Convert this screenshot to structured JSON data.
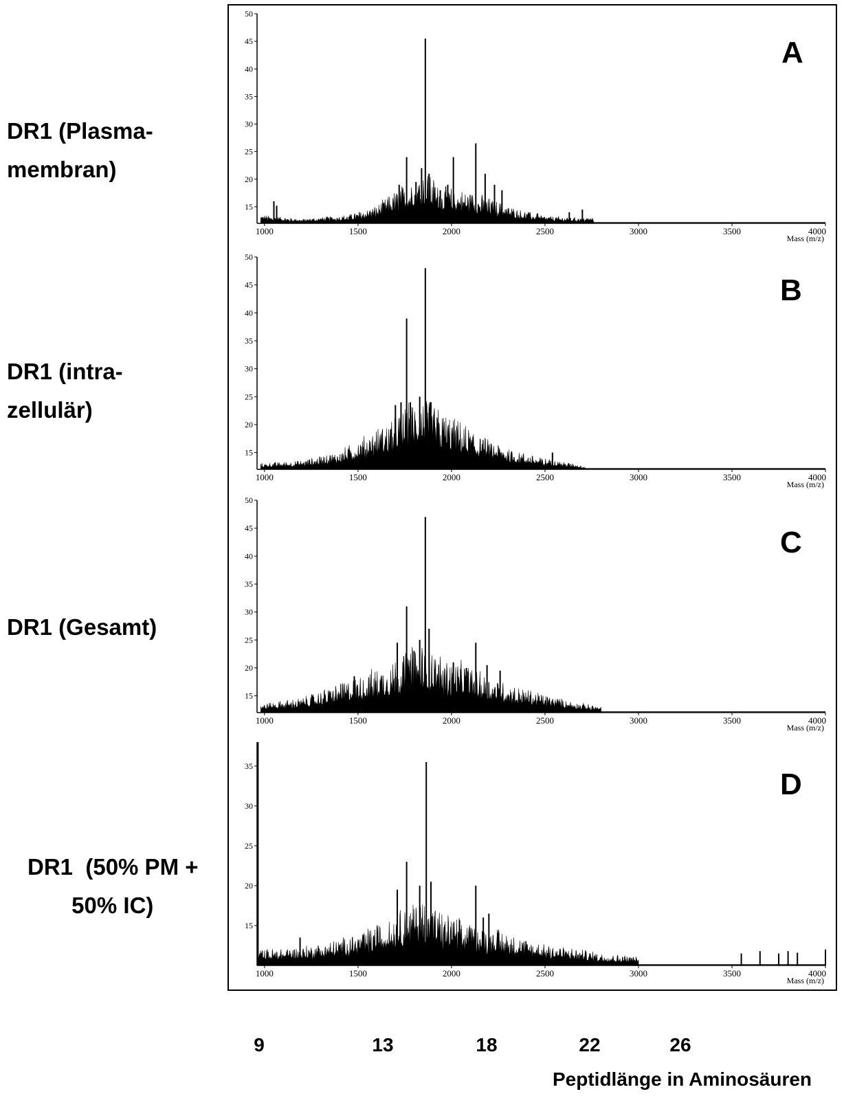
{
  "figure": {
    "rows": [
      {
        "letter": "A",
        "label_lines": [
          "DR1 (Plasma-",
          "membran)"
        ]
      },
      {
        "letter": "B",
        "label_lines": [
          "DR1 (intra-",
          "zellulär)"
        ]
      },
      {
        "letter": "C",
        "label_lines": [
          "DR1 (Gesamt)"
        ]
      },
      {
        "letter": "D",
        "label_lines": [
          "DR1  (50% PM +",
          "       50% IC)"
        ]
      }
    ],
    "peptide_axis": {
      "ticks": [
        "9",
        "13",
        "18",
        "22",
        "26"
      ],
      "label": "Peptidlänge in Aminosäuren"
    }
  },
  "chart_data": [
    {
      "type": "bar",
      "panel": "A",
      "title": "",
      "xlabel": "Mass (m/z)",
      "ylabel": "",
      "xlim": [
        960,
        4000
      ],
      "ylim": [
        12,
        50
      ],
      "xticks": [
        1000,
        1500,
        2000,
        2500,
        3000,
        3500,
        4000
      ],
      "yticks": [
        15,
        20,
        25,
        30,
        35,
        40,
        45,
        50
      ],
      "baseline": 12,
      "background": {
        "range": [
          980,
          2760
        ],
        "envelope": [
          [
            980,
            13.2
          ],
          [
            1200,
            12.6
          ],
          [
            1450,
            13.2
          ],
          [
            1600,
            14.5
          ],
          [
            1700,
            16.5
          ],
          [
            1800,
            18.5
          ],
          [
            1860,
            19.5
          ],
          [
            1950,
            17.0
          ],
          [
            2100,
            16.5
          ],
          [
            2200,
            15.5
          ],
          [
            2350,
            14.0
          ],
          [
            2500,
            13.0
          ],
          [
            2650,
            12.8
          ],
          [
            2750,
            12.8
          ]
        ]
      },
      "peaks": [
        {
          "mass": 1050,
          "intensity": 16.0
        },
        {
          "mass": 1065,
          "intensity": 15.2
        },
        {
          "mass": 1720,
          "intensity": 19.0
        },
        {
          "mass": 1760,
          "intensity": 24.0
        },
        {
          "mass": 1810,
          "intensity": 19.5
        },
        {
          "mass": 1840,
          "intensity": 22.0
        },
        {
          "mass": 1860,
          "intensity": 45.5
        },
        {
          "mass": 1880,
          "intensity": 21.0
        },
        {
          "mass": 1940,
          "intensity": 18.0
        },
        {
          "mass": 1980,
          "intensity": 19.0
        },
        {
          "mass": 2010,
          "intensity": 24.0
        },
        {
          "mass": 2130,
          "intensity": 26.5
        },
        {
          "mass": 2180,
          "intensity": 21.0
        },
        {
          "mass": 2230,
          "intensity": 19.0
        },
        {
          "mass": 2270,
          "intensity": 18.0
        },
        {
          "mass": 2460,
          "intensity": 13.8
        },
        {
          "mass": 2630,
          "intensity": 14.0
        },
        {
          "mass": 2700,
          "intensity": 14.5
        }
      ]
    },
    {
      "type": "bar",
      "panel": "B",
      "title": "",
      "xlabel": "Mass (m/z)",
      "ylabel": "",
      "xlim": [
        960,
        4000
      ],
      "ylim": [
        12,
        50
      ],
      "xticks": [
        1000,
        1500,
        2000,
        2500,
        3000,
        3500,
        4000
      ],
      "yticks": [
        15,
        20,
        25,
        30,
        35,
        40,
        45,
        50
      ],
      "baseline": 12,
      "background": {
        "range": [
          980,
          2720
        ],
        "envelope": [
          [
            980,
            12.8
          ],
          [
            1200,
            13.2
          ],
          [
            1400,
            14.5
          ],
          [
            1500,
            16.0
          ],
          [
            1600,
            17.5
          ],
          [
            1700,
            19.5
          ],
          [
            1800,
            21.5
          ],
          [
            1850,
            22.0
          ],
          [
            1950,
            20.0
          ],
          [
            2100,
            17.5
          ],
          [
            2200,
            16.0
          ],
          [
            2350,
            14.5
          ],
          [
            2500,
            13.5
          ],
          [
            2650,
            12.8
          ],
          [
            2720,
            12.4
          ]
        ]
      },
      "peaks": [
        {
          "mass": 1700,
          "intensity": 23.5
        },
        {
          "mass": 1730,
          "intensity": 24.0
        },
        {
          "mass": 1760,
          "intensity": 39.0
        },
        {
          "mass": 1780,
          "intensity": 24.0
        },
        {
          "mass": 1830,
          "intensity": 25.0
        },
        {
          "mass": 1860,
          "intensity": 48.0
        },
        {
          "mass": 1890,
          "intensity": 24.0
        },
        {
          "mass": 2540,
          "intensity": 15.0
        }
      ]
    },
    {
      "type": "bar",
      "panel": "C",
      "title": "",
      "xlabel": "Mass (m/z)",
      "ylabel": "",
      "xlim": [
        960,
        4000
      ],
      "ylim": [
        12,
        50
      ],
      "xticks": [
        1000,
        1500,
        2000,
        2500,
        3000,
        3500,
        4000
      ],
      "yticks": [
        15,
        20,
        25,
        30,
        35,
        40,
        45,
        50
      ],
      "baseline": 12,
      "background": {
        "range": [
          980,
          2800
        ],
        "envelope": [
          [
            980,
            13.2
          ],
          [
            1200,
            14.0
          ],
          [
            1400,
            16.0
          ],
          [
            1550,
            17.5
          ],
          [
            1700,
            19.5
          ],
          [
            1800,
            21.0
          ],
          [
            1850,
            21.5
          ],
          [
            1950,
            19.5
          ],
          [
            2100,
            18.5
          ],
          [
            2200,
            17.0
          ],
          [
            2350,
            15.5
          ],
          [
            2500,
            14.5
          ],
          [
            2650,
            13.5
          ],
          [
            2800,
            12.8
          ]
        ]
      },
      "peaks": [
        {
          "mass": 1480,
          "intensity": 18.5
        },
        {
          "mass": 1710,
          "intensity": 24.5
        },
        {
          "mass": 1760,
          "intensity": 31.0
        },
        {
          "mass": 1800,
          "intensity": 23.0
        },
        {
          "mass": 1830,
          "intensity": 25.0
        },
        {
          "mass": 1860,
          "intensity": 47.0
        },
        {
          "mass": 1880,
          "intensity": 27.0
        },
        {
          "mass": 2010,
          "intensity": 21.0
        },
        {
          "mass": 2080,
          "intensity": 20.0
        },
        {
          "mass": 2130,
          "intensity": 24.5
        },
        {
          "mass": 2190,
          "intensity": 20.5
        },
        {
          "mass": 2260,
          "intensity": 19.5
        }
      ]
    },
    {
      "type": "bar",
      "panel": "D",
      "title": "",
      "xlabel": "Mass (m/z)",
      "ylabel": "",
      "xlim": [
        960,
        4000
      ],
      "ylim": [
        10,
        38
      ],
      "xticks": [
        1000,
        1500,
        2000,
        2500,
        3000,
        3500,
        4000
      ],
      "yticks": [
        15,
        20,
        25,
        30,
        35
      ],
      "baseline": 10,
      "background": {
        "range": [
          965,
          3000
        ],
        "envelope": [
          [
            965,
            11.5
          ],
          [
            1200,
            11.8
          ],
          [
            1400,
            12.5
          ],
          [
            1550,
            13.5
          ],
          [
            1700,
            15.0
          ],
          [
            1800,
            16.0
          ],
          [
            1860,
            16.5
          ],
          [
            1950,
            15.0
          ],
          [
            2100,
            14.0
          ],
          [
            2250,
            13.5
          ],
          [
            2400,
            12.5
          ],
          [
            2600,
            11.8
          ],
          [
            2800,
            11.2
          ],
          [
            3000,
            10.8
          ]
        ]
      },
      "peaks": [
        {
          "mass": 965,
          "intensity": 38.0
        },
        {
          "mass": 1190,
          "intensity": 13.5
        },
        {
          "mass": 1710,
          "intensity": 19.5
        },
        {
          "mass": 1760,
          "intensity": 23.0
        },
        {
          "mass": 1830,
          "intensity": 20.0
        },
        {
          "mass": 1865,
          "intensity": 35.5
        },
        {
          "mass": 1890,
          "intensity": 20.5
        },
        {
          "mass": 2130,
          "intensity": 20.0
        },
        {
          "mass": 2170,
          "intensity": 16.0
        },
        {
          "mass": 2200,
          "intensity": 16.5
        },
        {
          "mass": 3550,
          "intensity": 11.5
        },
        {
          "mass": 3650,
          "intensity": 11.8
        },
        {
          "mass": 3750,
          "intensity": 11.5
        },
        {
          "mass": 3800,
          "intensity": 11.8
        },
        {
          "mass": 3850,
          "intensity": 11.6
        },
        {
          "mass": 4000,
          "intensity": 12.0
        }
      ]
    }
  ]
}
